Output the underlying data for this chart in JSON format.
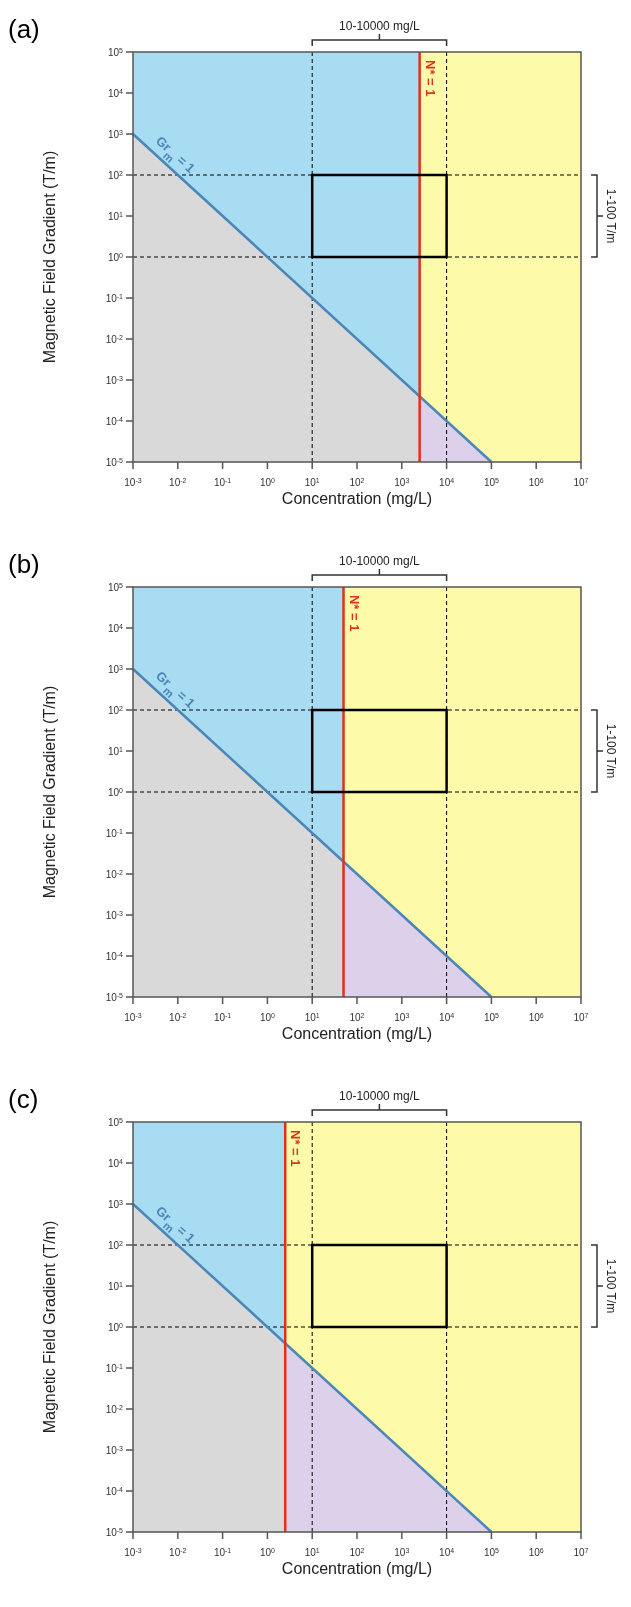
{
  "chart_data": [
    {
      "type": "line",
      "title": "(a)",
      "xlabel": "Concentration (mg/L)",
      "ylabel": "Magnetic Field Gradient (T/m)",
      "log": "xy",
      "xlim": [
        0.001,
        10000000
      ],
      "ylim": [
        1e-05,
        100000
      ],
      "xticks": [
        {
          "value": 0.001,
          "label": "10$^{-3}$"
        },
        {
          "value": 0.01,
          "label": "10$^{-2}$"
        },
        {
          "value": 0.1,
          "label": "10$^{-1}$"
        },
        {
          "value": 1,
          "label": "10$^{0}$"
        },
        {
          "value": 10,
          "label": "10$^{1}$"
        },
        {
          "value": 100,
          "label": "10$^{2}$"
        },
        {
          "value": 1000,
          "label": "10$^{3}$"
        },
        {
          "value": 10000,
          "label": "10$^{4}$"
        },
        {
          "value": 100000,
          "label": "10$^{5}$"
        },
        {
          "value": 1000000,
          "label": "10$^{6}$"
        },
        {
          "value": 10000000,
          "label": "10$^{7}$"
        }
      ],
      "yticks": [
        {
          "value": 1e-05,
          "label": "10$^{-5}$"
        },
        {
          "value": 0.0001,
          "label": "10$^{-4}$"
        },
        {
          "value": 0.001,
          "label": "10$^{-3}$"
        },
        {
          "value": 0.01,
          "label": "10$^{-2}$"
        },
        {
          "value": 0.1,
          "label": "10$^{-1}$"
        },
        {
          "value": 1,
          "label": "10$^{0}$"
        },
        {
          "value": 10,
          "label": "10$^{1}$"
        },
        {
          "value": 100,
          "label": "10$^{2}$"
        },
        {
          "value": 1000,
          "label": "10$^{3}$"
        },
        {
          "value": 10000,
          "label": "10$^{4}$"
        },
        {
          "value": 100000,
          "label": "10$^{5}$"
        }
      ],
      "series": [
        {
          "type": "area",
          "color": "#d9d9d9",
          "x": [
            0.001,
            2500
          ],
          "values": [
            1000,
            0.0004
          ]
        },
        {
          "type": "area",
          "color": "#ddd0ea",
          "x": [
            2500,
            100000
          ],
          "values": [
            0.0004,
            1e-05
          ]
        },
        {
          "type": "line",
          "name": "Gr$_{m}$ = 1",
          "color": "#4a86b8",
          "x": [
            0.001,
            100000
          ],
          "values": [
            1000,
            1e-05
          ]
        },
        {
          "type": "line",
          "name": "N* = 1",
          "color": "#e03020",
          "x": [
            2500,
            2500
          ],
          "values": [
            1e-05,
            100000
          ]
        }
      ],
      "bands": [
        {
          "axis": "x",
          "from": 0.001,
          "to": 2500,
          "color": "#a8dcf3"
        },
        {
          "axis": "x",
          "from": 2500,
          "to": 10000000,
          "color": "#fdfbaa"
        }
      ],
      "ref_lines": [
        {
          "axis": "x",
          "value": 10,
          "color": "#000000",
          "line_style": "dashed"
        },
        {
          "axis": "x",
          "value": 10000,
          "color": "#000000",
          "line_style": "dashed"
        },
        {
          "axis": "y",
          "value": 1,
          "color": "#000000",
          "line_style": "dashed"
        },
        {
          "axis": "y",
          "value": 100,
          "color": "#000000",
          "line_style": "dashed"
        }
      ],
      "annotations": [
        "10-10000 mg/L",
        "1-100 T/m"
      ]
    },
    {
      "type": "line",
      "title": "(b)",
      "xlabel": "Concentration (mg/L)",
      "ylabel": "Magnetic Field Gradient (T/m)",
      "log": "xy",
      "xlim": [
        0.001,
        10000000
      ],
      "ylim": [
        1e-05,
        100000
      ],
      "xticks": [
        {
          "value": 0.001,
          "label": "10$^{-3}$"
        },
        {
          "value": 0.01,
          "label": "10$^{-2}$"
        },
        {
          "value": 0.1,
          "label": "10$^{-1}$"
        },
        {
          "value": 1,
          "label": "10$^{0}$"
        },
        {
          "value": 10,
          "label": "10$^{1}$"
        },
        {
          "value": 100,
          "label": "10$^{2}$"
        },
        {
          "value": 1000,
          "label": "10$^{3}$"
        },
        {
          "value": 10000,
          "label": "10$^{4}$"
        },
        {
          "value": 100000,
          "label": "10$^{5}$"
        },
        {
          "value": 1000000,
          "label": "10$^{6}$"
        },
        {
          "value": 10000000,
          "label": "10$^{7}$"
        }
      ],
      "yticks": [
        {
          "value": 1e-05,
          "label": "10$^{-5}$"
        },
        {
          "value": 0.0001,
          "label": "10$^{-4}$"
        },
        {
          "value": 0.001,
          "label": "10$^{-3}$"
        },
        {
          "value": 0.01,
          "label": "10$^{-2}$"
        },
        {
          "value": 0.1,
          "label": "10$^{-1}$"
        },
        {
          "value": 1,
          "label": "10$^{0}$"
        },
        {
          "value": 10,
          "label": "10$^{1}$"
        },
        {
          "value": 100,
          "label": "10$^{2}$"
        },
        {
          "value": 1000,
          "label": "10$^{3}$"
        },
        {
          "value": 10000,
          "label": "10$^{4}$"
        },
        {
          "value": 100000,
          "label": "10$^{5}$"
        }
      ],
      "series": [
        {
          "type": "area",
          "color": "#d9d9d9",
          "x": [
            0.001,
            50
          ],
          "values": [
            1000,
            0.02
          ]
        },
        {
          "type": "area",
          "color": "#ddd0ea",
          "x": [
            50,
            100000
          ],
          "values": [
            0.02,
            1e-05
          ]
        },
        {
          "type": "line",
          "name": "Gr$_{m}$ = 1",
          "color": "#4a86b8",
          "x": [
            0.001,
            100000
          ],
          "values": [
            1000,
            1e-05
          ]
        },
        {
          "type": "line",
          "name": "N* = 1",
          "color": "#e03020",
          "x": [
            50,
            50
          ],
          "values": [
            1e-05,
            100000
          ]
        }
      ],
      "bands": [
        {
          "axis": "x",
          "from": 0.001,
          "to": 50,
          "color": "#a8dcf3"
        },
        {
          "axis": "x",
          "from": 50,
          "to": 10000000,
          "color": "#fdfbaa"
        }
      ],
      "ref_lines": [
        {
          "axis": "x",
          "value": 10,
          "color": "#000000",
          "line_style": "dashed"
        },
        {
          "axis": "x",
          "value": 10000,
          "color": "#000000",
          "line_style": "dashed"
        },
        {
          "axis": "y",
          "value": 1,
          "color": "#000000",
          "line_style": "dashed"
        },
        {
          "axis": "y",
          "value": 100,
          "color": "#000000",
          "line_style": "dashed"
        }
      ],
      "annotations": [
        "10-10000 mg/L",
        "1-100 T/m"
      ]
    },
    {
      "type": "line",
      "title": "(c)",
      "xlabel": "Concentration (mg/L)",
      "ylabel": "Magnetic Field Gradient (T/m)",
      "log": "xy",
      "xlim": [
        0.001,
        10000000
      ],
      "ylim": [
        1e-05,
        100000
      ],
      "xticks": [
        {
          "value": 0.001,
          "label": "10$^{-3}$"
        },
        {
          "value": 0.01,
          "label": "10$^{-2}$"
        },
        {
          "value": 0.1,
          "label": "10$^{-1}$"
        },
        {
          "value": 1,
          "label": "10$^{0}$"
        },
        {
          "value": 10,
          "label": "10$^{1}$"
        },
        {
          "value": 100,
          "label": "10$^{2}$"
        },
        {
          "value": 1000,
          "label": "10$^{3}$"
        },
        {
          "value": 10000,
          "label": "10$^{4}$"
        },
        {
          "value": 100000,
          "label": "10$^{5}$"
        },
        {
          "value": 1000000,
          "label": "10$^{6}$"
        },
        {
          "value": 10000000,
          "label": "10$^{7}$"
        }
      ],
      "yticks": [
        {
          "value": 1e-05,
          "label": "10$^{-5}$"
        },
        {
          "value": 0.0001,
          "label": "10$^{-4}$"
        },
        {
          "value": 0.001,
          "label": "10$^{-3}$"
        },
        {
          "value": 0.01,
          "label": "10$^{-2}$"
        },
        {
          "value": 0.1,
          "label": "10$^{-1}$"
        },
        {
          "value": 1,
          "label": "10$^{0}$"
        },
        {
          "value": 10,
          "label": "10$^{1}$"
        },
        {
          "value": 100,
          "label": "10$^{2}$"
        },
        {
          "value": 1000,
          "label": "10$^{3}$"
        },
        {
          "value": 10000,
          "label": "10$^{4}$"
        },
        {
          "value": 100000,
          "label": "10$^{5}$"
        }
      ],
      "series": [
        {
          "type": "area",
          "color": "#d9d9d9",
          "x": [
            0.001,
            2.5
          ],
          "values": [
            1000,
            0.4
          ]
        },
        {
          "type": "area",
          "color": "#ddd0ea",
          "x": [
            2.5,
            100000
          ],
          "values": [
            0.4,
            1e-05
          ]
        },
        {
          "type": "line",
          "name": "Gr$_{m}$ = 1",
          "color": "#4a86b8",
          "x": [
            0.001,
            100000
          ],
          "values": [
            1000,
            1e-05
          ]
        },
        {
          "type": "line",
          "name": "N* = 1",
          "color": "#e03020",
          "x": [
            2.5,
            2.5
          ],
          "values": [
            1e-05,
            100000
          ]
        }
      ],
      "bands": [
        {
          "axis": "x",
          "from": 0.001,
          "to": 2.5,
          "color": "#a8dcf3"
        },
        {
          "axis": "x",
          "from": 2.5,
          "to": 10000000,
          "color": "#fdfbaa"
        }
      ],
      "ref_lines": [
        {
          "axis": "x",
          "value": 10,
          "color": "#000000",
          "line_style": "dashed"
        },
        {
          "axis": "x",
          "value": 10000,
          "color": "#000000",
          "line_style": "dashed"
        },
        {
          "axis": "y",
          "value": 1,
          "color": "#000000",
          "line_style": "dashed"
        },
        {
          "axis": "y",
          "value": 100,
          "color": "#000000",
          "line_style": "dashed"
        }
      ],
      "annotations": [
        "10-10000 mg/L",
        "1-100 T/m"
      ]
    }
  ]
}
